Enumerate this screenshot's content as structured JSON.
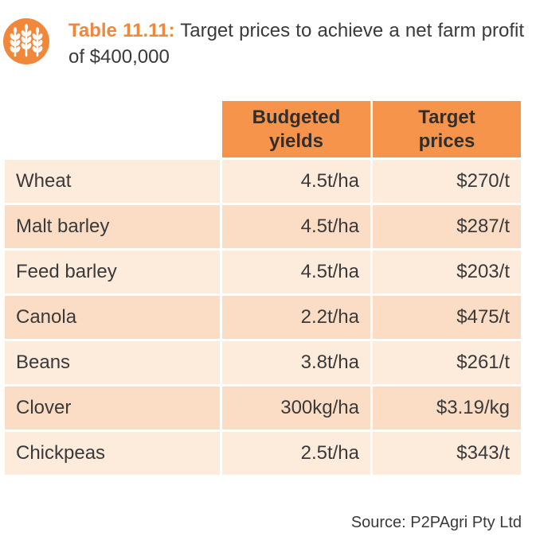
{
  "caption": {
    "label": "Table 11.11:",
    "text": " Target prices to achieve a net farm profit of $400,000",
    "icon": "wheat-icon"
  },
  "table": {
    "headers": [
      "",
      "Budgeted yields",
      "Target prices"
    ],
    "rows": [
      {
        "crop": "Wheat",
        "yield": "4.5t/ha",
        "price": "$270/t"
      },
      {
        "crop": "Malt barley",
        "yield": "4.5t/ha",
        "price": "$287/t"
      },
      {
        "crop": "Feed barley",
        "yield": "4.5t/ha",
        "price": "$203/t"
      },
      {
        "crop": "Canola",
        "yield": "2.2t/ha",
        "price": "$475/t"
      },
      {
        "crop": "Beans",
        "yield": "3.8t/ha",
        "price": "$261/t"
      },
      {
        "crop": "Clover",
        "yield": "300kg/ha",
        "price": "$3.19/kg"
      },
      {
        "crop": "Chickpeas",
        "yield": "2.5t/ha",
        "price": "$343/t"
      }
    ]
  },
  "source": "Source: P2PAgri Pty Ltd",
  "colors": {
    "accent": "#f0873b",
    "header_bg": "#f5944a",
    "row_light": "#fdebdc",
    "row_dark": "#fbdcc4"
  }
}
